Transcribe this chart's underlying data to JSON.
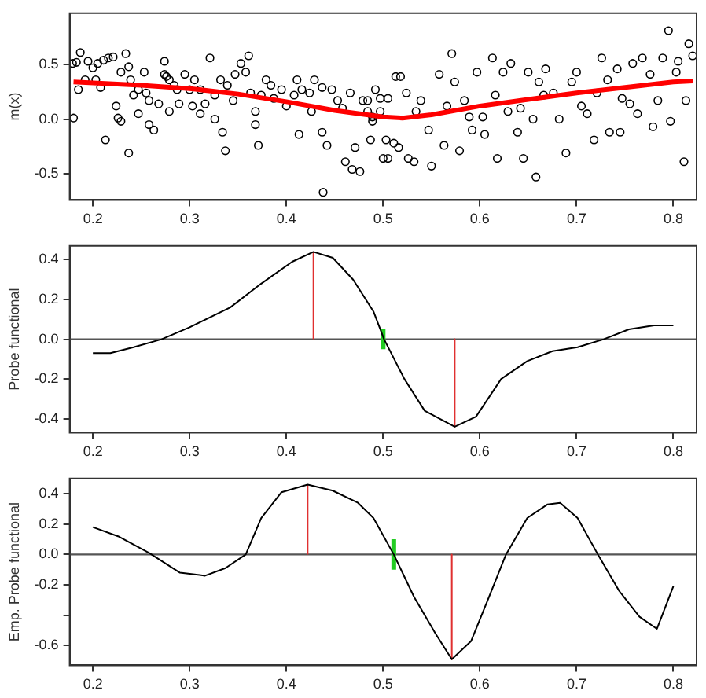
{
  "chart_data": [
    {
      "type": "scatter",
      "ylabel": "m(x)",
      "xlim": [
        0.176,
        0.824
      ],
      "xticks": [
        0.2,
        0.3,
        0.4,
        0.5,
        0.6,
        0.7,
        0.8
      ],
      "ylim": [
        -0.74,
        0.97
      ],
      "yticks": [
        -0.5,
        {
          "value": 0,
          "label": "0.0"
        },
        0.5
      ],
      "series": [
        {
          "color": "#000000",
          "marker": "circle",
          "x": [
            0.179,
            0.183,
            0.187,
            0.195,
            0.2,
            0.192,
            0.185,
            0.18,
            0.205,
            0.211,
            0.216,
            0.221,
            0.203,
            0.208,
            0.213,
            0.224,
            0.226,
            0.229,
            0.229,
            0.234,
            0.237,
            0.239,
            0.242,
            0.247,
            0.247,
            0.237,
            0.253,
            0.255,
            0.258,
            0.258,
            0.263,
            0.268,
            0.274,
            0.274,
            0.276,
            0.279,
            0.284,
            0.289,
            0.279,
            0.287,
            0.295,
            0.3,
            0.303,
            0.305,
            0.311,
            0.311,
            0.316,
            0.321,
            0.326,
            0.326,
            0.332,
            0.337,
            0.334,
            0.339,
            0.345,
            0.347,
            0.353,
            0.358,
            0.361,
            0.363,
            0.368,
            0.374,
            0.368,
            0.371,
            0.379,
            0.384,
            0.387,
            0.395,
            0.4,
            0.408,
            0.411,
            0.416,
            0.413,
            0.424,
            0.426,
            0.429,
            0.437,
            0.438,
            0.437,
            0.442,
            0.447,
            0.453,
            0.458,
            0.461,
            0.466,
            0.468,
            0.471,
            0.476,
            0.479,
            0.484,
            0.487,
            0.489,
            0.492,
            0.497,
            0.5,
            0.505,
            0.511,
            0.513,
            0.484,
            0.489,
            0.497,
            0.503,
            0.505,
            0.516,
            0.518,
            0.526,
            0.524,
            0.532,
            0.534,
            0.539,
            0.547,
            0.55,
            0.558,
            0.563,
            0.566,
            0.571,
            0.574,
            0.579,
            0.584,
            0.589,
            0.592,
            0.597,
            0.603,
            0.605,
            0.613,
            0.616,
            0.618,
            0.624,
            0.629,
            0.632,
            0.639,
            0.642,
            0.645,
            0.65,
            0.655,
            0.658,
            0.661,
            0.666,
            0.668,
            0.676,
            0.682,
            0.689,
            0.695,
            0.7,
            0.705,
            0.711,
            0.718,
            0.721,
            0.726,
            0.732,
            0.734,
            0.742,
            0.745,
            0.747,
            0.755,
            0.758,
            0.763,
            0.768,
            0.776,
            0.779,
            0.784,
            0.789,
            0.795,
            0.797,
            0.803,
            0.805,
            0.811,
            0.813,
            0.816,
            0.82
          ],
          "values": [
            0.51,
            0.52,
            0.61,
            0.53,
            0.47,
            0.36,
            0.27,
            0.01,
            0.51,
            0.54,
            0.56,
            0.57,
            0.36,
            0.29,
            -0.19,
            0.12,
            0.01,
            -0.02,
            0.43,
            0.6,
            0.48,
            0.36,
            0.22,
            0.27,
            0.05,
            -0.31,
            0.43,
            0.24,
            0.17,
            -0.05,
            -0.1,
            0.14,
            0.53,
            0.41,
            0.39,
            0.36,
            0.31,
            0.14,
            0.07,
            0.27,
            0.41,
            0.27,
            0.12,
            0.36,
            0.27,
            0.05,
            0.14,
            0.56,
            0.22,
            0,
            0.36,
            -0.29,
            -0.12,
            0.31,
            0.17,
            0.41,
            0.51,
            0.43,
            0.58,
            0.24,
            0.07,
            0.22,
            -0.05,
            -0.24,
            0.36,
            0.31,
            0.19,
            0.27,
            0.12,
            0.22,
            0.36,
            0.27,
            -0.14,
            0.24,
            0.07,
            0.36,
            0.29,
            -0.67,
            -0.12,
            -0.24,
            0.27,
            0.17,
            0.1,
            -0.39,
            0.24,
            -0.46,
            -0.26,
            -0.48,
            0.17,
            0.07,
            -0.19,
            -0.02,
            0.27,
            0.07,
            -0.36,
            0.19,
            -0.22,
            0.39,
            0.17,
            0.02,
            0.19,
            -0.19,
            -0.36,
            -0.26,
            0.39,
            -0.36,
            0.24,
            -0.39,
            0.07,
            0.17,
            -0.1,
            -0.43,
            0.41,
            -0.24,
            0.12,
            0.6,
            0.34,
            -0.29,
            0.17,
            0.02,
            -0.1,
            0.43,
            0.02,
            -0.14,
            0.56,
            0.22,
            -0.36,
            0.43,
            0.07,
            0.51,
            -0.12,
            0.1,
            -0.36,
            0.43,
            0,
            -0.53,
            0.34,
            0.22,
            0.46,
            0.24,
            0,
            -0.31,
            0.34,
            0.43,
            0.12,
            0.05,
            -0.19,
            0.24,
            0.56,
            0.36,
            -0.12,
            0.46,
            -0.12,
            0.19,
            0.14,
            0.51,
            0.05,
            0.56,
            0.41,
            -0.07,
            0.17,
            0.56,
            0.81,
            -0.02,
            0.43,
            0.53,
            -0.39,
            0.17,
            0.69,
            0.58
          ]
        },
        {
          "type": "line",
          "color": "#ff0000",
          "marker": "none",
          "x": [
            0.18,
            0.25,
            0.3,
            0.35,
            0.4,
            0.45,
            0.5,
            0.52,
            0.55,
            0.6,
            0.65,
            0.7,
            0.75,
            0.8,
            0.82
          ],
          "values": [
            0.34,
            0.31,
            0.28,
            0.23,
            0.16,
            0.08,
            0.02,
            0.01,
            0.04,
            0.12,
            0.18,
            0.24,
            0.29,
            0.34,
            0.35
          ]
        }
      ]
    },
    {
      "type": "line",
      "ylabel": "Probe functional",
      "xlim": [
        0.176,
        0.824
      ],
      "xticks": [
        0.2,
        0.3,
        0.4,
        0.5,
        0.6,
        0.7,
        0.8
      ],
      "ylim": [
        -0.47,
        0.47
      ],
      "yticks": [
        -0.4,
        -0.2,
        {
          "value": 0,
          "label": "0.0"
        },
        0.2,
        0.4
      ],
      "ref_lines": [
        {
          "axis": "y",
          "value": 0,
          "color": "#555555"
        }
      ],
      "series": [
        {
          "color": "#000000",
          "marker": "none",
          "x": [
            0.2,
            0.218,
            0.242,
            0.271,
            0.3,
            0.342,
            0.374,
            0.406,
            0.428,
            0.448,
            0.469,
            0.49,
            0.501,
            0.522,
            0.543,
            0.574,
            0.596,
            0.622,
            0.649,
            0.675,
            0.701,
            0.728,
            0.754,
            0.78,
            0.8
          ],
          "values": [
            -0.07,
            -0.07,
            -0.04,
            0,
            0.06,
            0.16,
            0.28,
            0.39,
            0.44,
            0.41,
            0.3,
            0.14,
            0,
            -0.2,
            -0.36,
            -0.44,
            -0.39,
            -0.2,
            -0.11,
            -0.06,
            -0.04,
            0,
            0.05,
            0.07,
            0.07
          ]
        },
        {
          "color": "#e03030",
          "marker": "none",
          "x": [
            0.428,
            0.428
          ],
          "values": [
            0,
            0.44
          ]
        },
        {
          "color": "#e03030",
          "marker": "none",
          "x": [
            0.574,
            0.574
          ],
          "values": [
            0,
            -0.44
          ]
        },
        {
          "color": "#22cc22",
          "marker": "none",
          "x": [
            0.5,
            0.5
          ],
          "values": [
            -0.05,
            0.05
          ]
        }
      ]
    },
    {
      "type": "line",
      "ylabel": "Emp. Probe functional",
      "xlim": [
        0.176,
        0.824
      ],
      "xticks": [
        0.2,
        0.3,
        0.4,
        0.5,
        0.6,
        0.7,
        0.8
      ],
      "ylim": [
        -0.73,
        0.5
      ],
      "yticks": [
        {
          "value": -0.6,
          "label": "-0.6"
        },
        {
          "value": -0.4,
          "label": null
        },
        {
          "value": -0.2,
          "label": "-0.2"
        },
        {
          "value": 0,
          "label": "0.0"
        },
        {
          "value": 0.2,
          "label": "0.2"
        },
        {
          "value": 0.4,
          "label": "0.4"
        }
      ],
      "ref_lines": [
        {
          "axis": "y",
          "value": 0,
          "color": "#555555"
        }
      ],
      "series": [
        {
          "color": "#000000",
          "marker": "none",
          "x": [
            0.2,
            0.226,
            0.258,
            0.29,
            0.316,
            0.337,
            0.358,
            0.374,
            0.395,
            0.422,
            0.448,
            0.474,
            0.49,
            0.511,
            0.532,
            0.554,
            0.571,
            0.591,
            0.612,
            0.627,
            0.649,
            0.67,
            0.683,
            0.701,
            0.722,
            0.744,
            0.765,
            0.783,
            0.8
          ],
          "values": [
            0.18,
            0.12,
            0.01,
            -0.12,
            -0.14,
            -0.09,
            0,
            0.24,
            0.41,
            0.46,
            0.42,
            0.34,
            0.24,
            0,
            -0.28,
            -0.52,
            -0.69,
            -0.57,
            -0.24,
            0,
            0.24,
            0.33,
            0.34,
            0.24,
            0,
            -0.24,
            -0.41,
            -0.49,
            -0.21
          ]
        },
        {
          "color": "#e03030",
          "marker": "none",
          "x": [
            0.422,
            0.422
          ],
          "values": [
            0,
            0.46
          ]
        },
        {
          "color": "#e03030",
          "marker": "none",
          "x": [
            0.571,
            0.571
          ],
          "values": [
            0,
            -0.69
          ]
        },
        {
          "color": "#22cc22",
          "marker": "none",
          "x": [
            0.511,
            0.511
          ],
          "values": [
            -0.1,
            0.1
          ]
        }
      ]
    }
  ]
}
